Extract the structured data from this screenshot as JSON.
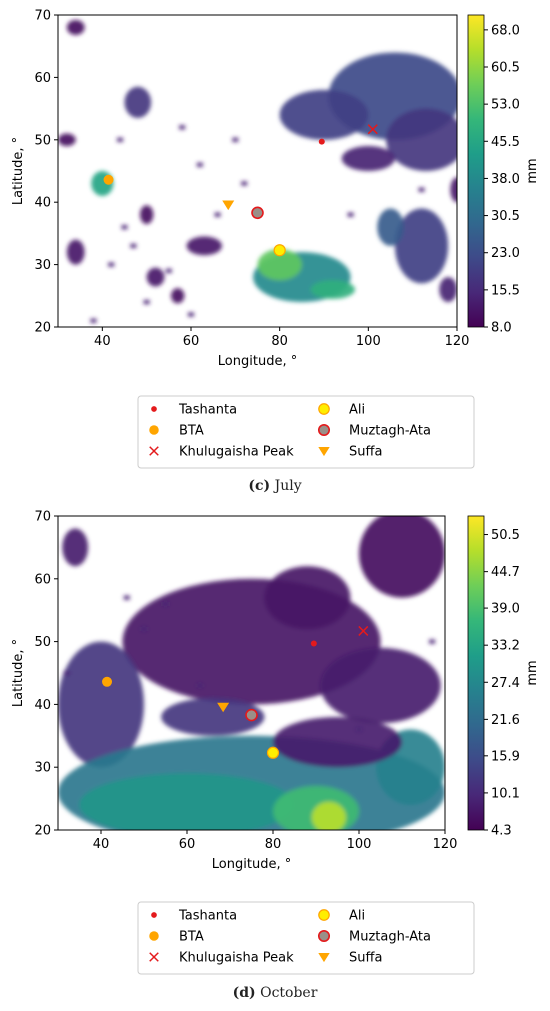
{
  "colormap": [
    "#440154",
    "#482878",
    "#3e4a89",
    "#31688e",
    "#26828e",
    "#1f9e89",
    "#35b779",
    "#6ece58",
    "#b5de2b",
    "#fde725"
  ],
  "colors": {
    "background": "#ffffff",
    "axis": "#000000",
    "red_marker": "#e41a1c",
    "orange_marker": "#ffa500",
    "yellow_marker": "#ffee00"
  },
  "chart_data": [
    {
      "type": "heatmap",
      "caption_letter": "(c)",
      "caption_text": "July",
      "xlabel": "Longitude, °",
      "ylabel": "Latitude, °",
      "xlim": [
        30,
        120
      ],
      "ylim": [
        20,
        70
      ],
      "xticks": [
        "40",
        "60",
        "80",
        "100",
        "120"
      ],
      "yticks": [
        "20",
        "30",
        "40",
        "50",
        "60",
        "70"
      ],
      "colorbar_label": "mm",
      "colorbar_ticks": [
        "8.0",
        "15.5",
        "23.0",
        "30.5",
        "38.0",
        "45.5",
        "53.0",
        "60.5",
        "68.0"
      ],
      "colorbar_range": [
        8.0,
        71.0
      ],
      "regions": [
        {
          "lon": 106,
          "lat": 57,
          "rx": 15,
          "ry": 7,
          "value": 22
        },
        {
          "lon": 90,
          "lat": 54,
          "rx": 10,
          "ry": 4,
          "value": 20
        },
        {
          "lon": 113,
          "lat": 50,
          "rx": 9,
          "ry": 5,
          "value": 18
        },
        {
          "lon": 100,
          "lat": 47,
          "rx": 6,
          "ry": 2,
          "value": 14
        },
        {
          "lon": 48,
          "lat": 56,
          "rx": 3,
          "ry": 2.5,
          "value": 18
        },
        {
          "lon": 40,
          "lat": 43,
          "rx": 2.5,
          "ry": 2,
          "value": 45
        },
        {
          "lon": 85,
          "lat": 28,
          "rx": 11,
          "ry": 4,
          "value": 38
        },
        {
          "lon": 80,
          "lat": 30,
          "rx": 5,
          "ry": 2.5,
          "value": 55
        },
        {
          "lon": 92,
          "lat": 26,
          "rx": 5,
          "ry": 1.5,
          "value": 48
        },
        {
          "lon": 112,
          "lat": 33,
          "rx": 6,
          "ry": 6,
          "value": 20
        },
        {
          "lon": 105,
          "lat": 36,
          "rx": 3,
          "ry": 3,
          "value": 26
        },
        {
          "lon": 63,
          "lat": 33,
          "rx": 4,
          "ry": 1.5,
          "value": 12
        },
        {
          "lon": 52,
          "lat": 28,
          "rx": 2,
          "ry": 1.5,
          "value": 12
        },
        {
          "lon": 34,
          "lat": 68,
          "rx": 2,
          "ry": 1.2,
          "value": 10
        },
        {
          "lon": 32,
          "lat": 50,
          "rx": 2,
          "ry": 1,
          "value": 10
        },
        {
          "lon": 34,
          "lat": 32,
          "rx": 2,
          "ry": 2,
          "value": 12
        },
        {
          "lon": 50,
          "lat": 38,
          "rx": 1.5,
          "ry": 1.5,
          "value": 10
        },
        {
          "lon": 57,
          "lat": 25,
          "rx": 1.5,
          "ry": 1.2,
          "value": 10
        },
        {
          "lon": 118,
          "lat": 26,
          "rx": 2,
          "ry": 2,
          "value": 14
        },
        {
          "lon": 120,
          "lat": 42,
          "rx": 1.5,
          "ry": 2,
          "value": 12
        }
      ],
      "speckles": [
        [
          45,
          36
        ],
        [
          47,
          33
        ],
        [
          55,
          29
        ],
        [
          60,
          22
        ],
        [
          38,
          21
        ],
        [
          42,
          30
        ],
        [
          50,
          24
        ],
        [
          72,
          43
        ],
        [
          96,
          38
        ],
        [
          66,
          38
        ],
        [
          44,
          50
        ],
        [
          62,
          46
        ],
        [
          70,
          50
        ],
        [
          58,
          52
        ],
        [
          112,
          42
        ]
      ],
      "sites": [
        {
          "name": "Tashanta",
          "lon": 89.5,
          "lat": 49.7,
          "marker": "dot"
        },
        {
          "name": "BTA",
          "lon": 41.4,
          "lat": 43.6,
          "marker": "circle-orange"
        },
        {
          "name": "Khulugaisha Peak",
          "lon": 101,
          "lat": 51.7,
          "marker": "x"
        },
        {
          "name": "Ali",
          "lon": 80,
          "lat": 32.3,
          "marker": "circle-yellow"
        },
        {
          "name": "Muztagh-Ata",
          "lon": 75,
          "lat": 38.3,
          "marker": "circle-gray-red"
        },
        {
          "name": "Suffa",
          "lon": 68.4,
          "lat": 39.6,
          "marker": "triangle-down"
        }
      ]
    },
    {
      "type": "heatmap",
      "caption_letter": "(d)",
      "caption_text": "October",
      "xlabel": "Longitude, °",
      "ylabel": "Latitude, °",
      "xlim": [
        30,
        120
      ],
      "ylim": [
        20,
        70
      ],
      "xticks": [
        "40",
        "60",
        "80",
        "100",
        "120"
      ],
      "yticks": [
        "20",
        "30",
        "40",
        "50",
        "60",
        "70"
      ],
      "colorbar_label": "mm",
      "colorbar_ticks": [
        "4.3",
        "10.1",
        "15.9",
        "21.6",
        "27.4",
        "33.2",
        "39.0",
        "44.7",
        "50.5"
      ],
      "colorbar_range": [
        4.3,
        53.4
      ],
      "regions": [
        {
          "lon": 75,
          "lat": 50,
          "rx": 30,
          "ry": 10,
          "value": 7
        },
        {
          "lon": 110,
          "lat": 64,
          "rx": 10,
          "ry": 7,
          "value": 6
        },
        {
          "lon": 88,
          "lat": 57,
          "rx": 10,
          "ry": 5,
          "value": 7
        },
        {
          "lon": 40,
          "lat": 40,
          "rx": 10,
          "ry": 10,
          "value": 12
        },
        {
          "lon": 34,
          "lat": 65,
          "rx": 3,
          "ry": 3,
          "value": 8
        },
        {
          "lon": 105,
          "lat": 43,
          "rx": 14,
          "ry": 6,
          "value": 8
        },
        {
          "lon": 75,
          "lat": 26,
          "rx": 45,
          "ry": 9,
          "value": 24
        },
        {
          "lon": 60,
          "lat": 24,
          "rx": 25,
          "ry": 5,
          "value": 30
        },
        {
          "lon": 90,
          "lat": 23,
          "rx": 10,
          "ry": 4,
          "value": 38
        },
        {
          "lon": 93,
          "lat": 22,
          "rx": 4,
          "ry": 2.5,
          "value": 48
        },
        {
          "lon": 112,
          "lat": 30,
          "rx": 8,
          "ry": 6,
          "value": 26
        },
        {
          "lon": 66,
          "lat": 38,
          "rx": 12,
          "ry": 3,
          "value": 12
        },
        {
          "lon": 95,
          "lat": 34,
          "rx": 15,
          "ry": 4,
          "value": 8
        }
      ],
      "speckles": [
        [
          55,
          56
        ],
        [
          50,
          52
        ],
        [
          46,
          57
        ],
        [
          63,
          43
        ],
        [
          100,
          36
        ],
        [
          117,
          50
        ],
        [
          32,
          45
        ]
      ],
      "sites": [
        {
          "name": "Tashanta",
          "lon": 89.5,
          "lat": 49.7,
          "marker": "dot"
        },
        {
          "name": "BTA",
          "lon": 41.4,
          "lat": 43.6,
          "marker": "circle-orange"
        },
        {
          "name": "Khulugaisha Peak",
          "lon": 101,
          "lat": 51.7,
          "marker": "x"
        },
        {
          "name": "Ali",
          "lon": 80,
          "lat": 32.3,
          "marker": "circle-yellow"
        },
        {
          "name": "Muztagh-Ata",
          "lon": 75,
          "lat": 38.3,
          "marker": "circle-gray-red"
        },
        {
          "name": "Suffa",
          "lon": 68.4,
          "lat": 39.6,
          "marker": "triangle-down"
        }
      ]
    }
  ]
}
